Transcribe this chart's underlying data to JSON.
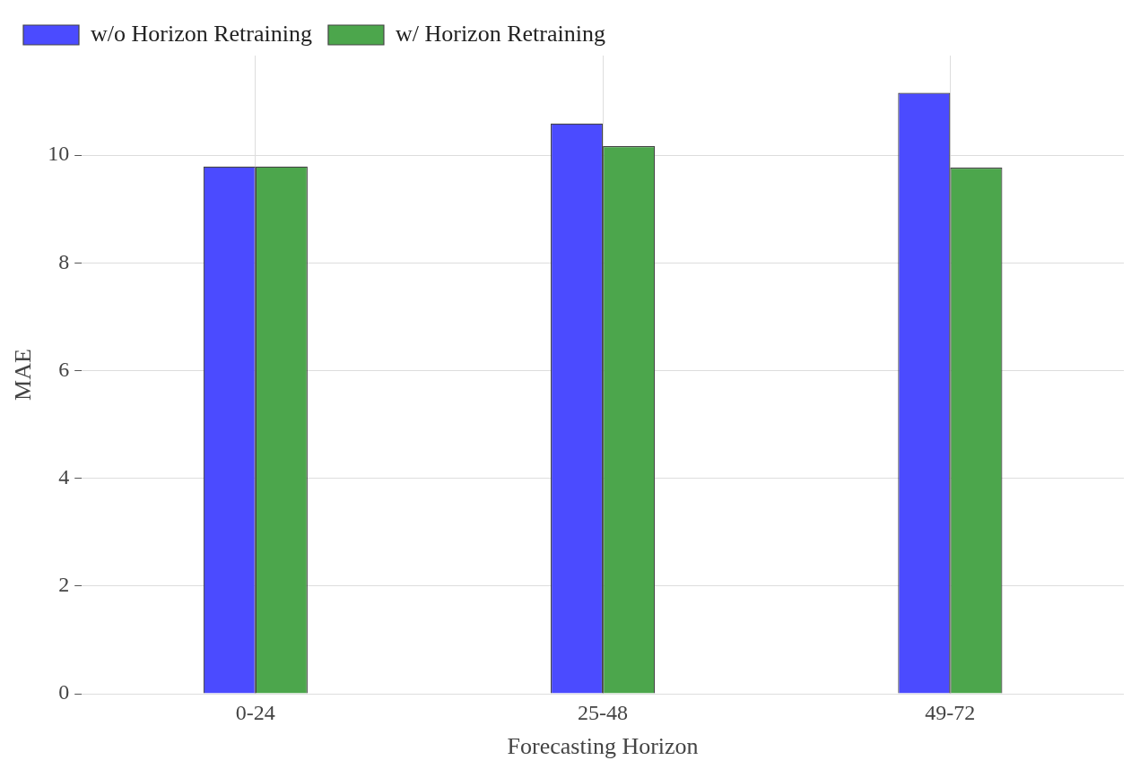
{
  "chart_data": {
    "type": "bar",
    "xlabel": "Forecasting Horizon",
    "ylabel": "MAE",
    "categories": [
      "0-24",
      "25-48",
      "49-72"
    ],
    "series": [
      {
        "name": "w/o Horizon Retraining",
        "color": "#4b4bff",
        "values": [
          9.79,
          10.59,
          11.16
        ]
      },
      {
        "name": "w/ Horizon Retraining",
        "color": "#4ca64c",
        "values": [
          9.79,
          10.17,
          9.77
        ]
      }
    ],
    "ylim": [
      0,
      11.85
    ],
    "yticks": [
      0,
      2,
      4,
      6,
      8,
      10
    ],
    "grid": true,
    "legend": "top left"
  }
}
